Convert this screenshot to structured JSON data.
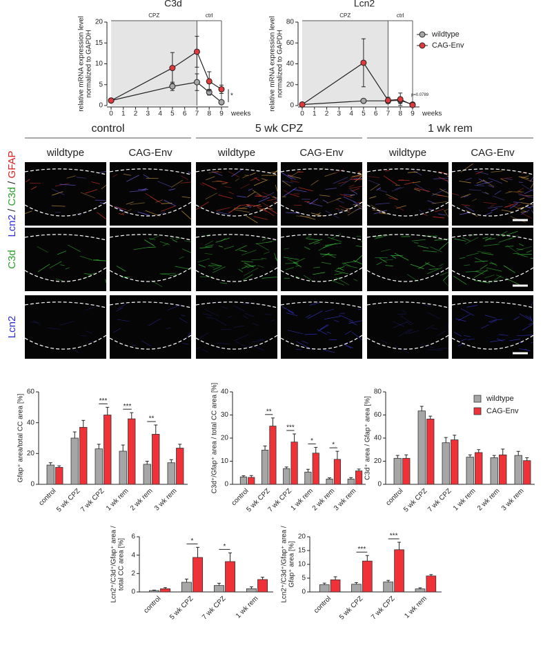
{
  "chart_data": [
    {
      "type": "line",
      "title": "C3d",
      "ylabel": [
        "relative mRNA expression level",
        "normalized to GAPDH"
      ],
      "xlabel": "weeks",
      "x": [
        0,
        5,
        7,
        8,
        9
      ],
      "xlim": [
        0,
        9
      ],
      "xticks": [
        0,
        1,
        2,
        3,
        4,
        5,
        6,
        7,
        8,
        9
      ],
      "ylim": [
        0,
        20
      ],
      "yticks": [
        0,
        5,
        10,
        15,
        20
      ],
      "regions": [
        {
          "label": "CPZ",
          "from": 0,
          "to": 7
        },
        {
          "label": "ctrl",
          "from": 7,
          "to": 9
        }
      ],
      "series": [
        {
          "name": "wildtype",
          "color": "#a6a6a6",
          "values": [
            1.2,
            4.6,
            5.6,
            3.2,
            0.8
          ],
          "errors": [
            0.2,
            1.0,
            2.0,
            0.7,
            0.3
          ]
        },
        {
          "name": "CAG-Env",
          "color": "#e0393b",
          "values": [
            1.2,
            9.0,
            12.9,
            5.8,
            3.9
          ],
          "errors": [
            0.2,
            3.7,
            3.7,
            2.3,
            1.0
          ]
        }
      ],
      "annotation": "*",
      "legend": false
    },
    {
      "type": "line",
      "title": "Lcn2",
      "ylabel": [
        "relative mRNA expression level",
        "normalized to GAPDH"
      ],
      "xlabel": "weeks",
      "x": [
        0,
        5,
        7,
        8,
        9
      ],
      "xlim": [
        0,
        9
      ],
      "xticks": [
        0,
        1,
        2,
        3,
        4,
        5,
        6,
        7,
        8,
        9
      ],
      "ylim": [
        0,
        80
      ],
      "yticks": [
        0,
        20,
        40,
        60,
        80
      ],
      "regions": [
        {
          "label": "CPZ",
          "from": 0,
          "to": 7
        },
        {
          "label": "ctrl",
          "from": 7,
          "to": 9
        }
      ],
      "series": [
        {
          "name": "wildtype",
          "color": "#a6a6a6",
          "values": [
            1,
            4.5,
            4.5,
            5,
            1
          ],
          "errors": [
            0.5,
            1,
            2,
            3,
            0.5
          ]
        },
        {
          "name": "CAG-Env",
          "color": "#e0393b",
          "values": [
            1,
            41,
            5,
            6,
            0.5
          ],
          "errors": [
            0.5,
            23,
            3,
            6,
            1
          ]
        }
      ],
      "annotation": "p=0.0789",
      "legend": true
    },
    {
      "type": "bar",
      "ylabel": [
        "Gfap⁺ area/total CC area [%]"
      ],
      "categories": [
        "control",
        "5 wk CPZ",
        "7 wk CPZ",
        "1 wk rem",
        "2 wk rem",
        "3 wk rem"
      ],
      "ylim": [
        0,
        60
      ],
      "yticks": [
        0,
        20,
        40,
        60
      ],
      "series": [
        {
          "name": "wildtype",
          "color": "#a6a6a6",
          "values": [
            12.5,
            30,
            23,
            21.5,
            13,
            14
          ],
          "errors": [
            1.5,
            4,
            3,
            4,
            2,
            2
          ]
        },
        {
          "name": "CAG-Env",
          "color": "#ee3238",
          "values": [
            11,
            37,
            45,
            42.5,
            32.5,
            23.5
          ],
          "errors": [
            1,
            4.5,
            5,
            4,
            6,
            2.5
          ]
        }
      ],
      "significance": [
        null,
        null,
        "***",
        "***",
        "**",
        null
      ],
      "legend": false
    },
    {
      "type": "bar",
      "ylabel": [
        "C3d⁺/Gfap⁺ area / total CC area [%]"
      ],
      "categories": [
        "control",
        "5 wk CPZ",
        "7 wk CPZ",
        "1 wk rem",
        "2 wk rem",
        "3 wk rem"
      ],
      "ylim": [
        0,
        40
      ],
      "yticks": [
        0,
        10,
        20,
        30,
        40
      ],
      "series": [
        {
          "name": "wildtype",
          "color": "#a6a6a6",
          "values": [
            3.2,
            14.8,
            6.8,
            5.3,
            2.3,
            2.3
          ],
          "errors": [
            0.5,
            1.8,
            0.7,
            1.2,
            0.5,
            0.6
          ]
        },
        {
          "name": "CAG-Env",
          "color": "#ee3238",
          "values": [
            3,
            25.2,
            18.3,
            13.5,
            10.8,
            5.8
          ],
          "errors": [
            0.8,
            3.5,
            3.5,
            2.5,
            3.5,
            0.8
          ]
        }
      ],
      "significance": [
        null,
        "**",
        "***",
        "*",
        "*",
        null
      ],
      "legend": false
    },
    {
      "type": "bar",
      "ylabel": [
        "C3d⁺ area / Gfap⁺ area [%]"
      ],
      "categories": [
        "control",
        "5 wk CPZ",
        "7 wk CPZ",
        "1 wk rem",
        "2 wk rem",
        "3 wk rem"
      ],
      "ylim": [
        0,
        80
      ],
      "yticks": [
        0,
        20,
        40,
        60,
        80
      ],
      "series": [
        {
          "name": "wildtype",
          "color": "#a6a6a6",
          "values": [
            22.5,
            63.5,
            36,
            23.5,
            23,
            25
          ],
          "errors": [
            2.5,
            4,
            4.5,
            2,
            2,
            3.5
          ]
        },
        {
          "name": "CAG-Env",
          "color": "#ee3238",
          "values": [
            22.5,
            56.5,
            38.5,
            27.5,
            25.5,
            20.5
          ],
          "errors": [
            3,
            2.5,
            4,
            2.5,
            5,
            2.5
          ]
        }
      ],
      "significance": [
        null,
        null,
        null,
        null,
        null,
        null
      ],
      "legend": true
    },
    {
      "type": "bar",
      "ylabel": [
        "Lcn2⁺/C3d⁺/Gfap⁺ area /",
        "total CC area [%]"
      ],
      "categories": [
        "control",
        "5 wk CPZ",
        "7 wk CPZ",
        "1 wk rem"
      ],
      "ylim": [
        0,
        6
      ],
      "yticks": [
        0,
        2,
        4,
        6
      ],
      "series": [
        {
          "name": "wildtype",
          "color": "#a6a6a6",
          "values": [
            0.15,
            1.05,
            0.7,
            0.35
          ],
          "errors": [
            0.05,
            0.35,
            0.25,
            0.2
          ]
        },
        {
          "name": "CAG-Env",
          "color": "#ee3238",
          "values": [
            0.35,
            3.75,
            3.3,
            1.35
          ],
          "errors": [
            0.12,
            1.1,
            0.95,
            0.25
          ]
        }
      ],
      "significance": [
        null,
        "*",
        "*",
        null
      ],
      "legend": false
    },
    {
      "type": "bar",
      "ylabel": [
        "Lcn2⁺/C3d⁺/Gfap⁺ area /",
        "Gfap⁺ area [%]"
      ],
      "categories": [
        "control",
        "5 wk CPZ",
        "7 wk CPZ",
        "1 wk rem"
      ],
      "ylim": [
        0,
        20
      ],
      "yticks": [
        0,
        5,
        10,
        15,
        20
      ],
      "series": [
        {
          "name": "wildtype",
          "color": "#a6a6a6",
          "values": [
            2.6,
            2.8,
            3.6,
            1.1
          ],
          "errors": [
            0.6,
            0.6,
            0.6,
            0.4
          ]
        },
        {
          "name": "CAG-Env",
          "color": "#ee3238",
          "values": [
            4.4,
            11.2,
            15.3,
            5.8
          ],
          "errors": [
            1.1,
            2,
            2.7,
            0.5
          ]
        }
      ],
      "significance": [
        null,
        "***",
        "***",
        null
      ],
      "legend": false
    }
  ],
  "image_panel": {
    "groups": [
      "control",
      "5 wk CPZ",
      "1 wk rem"
    ],
    "columns": [
      "wildtype",
      "CAG-Env",
      "wildtype",
      "CAG-Env",
      "wildtype",
      "CAG-Env"
    ],
    "rows": [
      [
        {
          "text": "Lcn2",
          "color": "#2b2bd6"
        },
        {
          "text": " / ",
          "color": "#222222"
        },
        {
          "text": "C3d",
          "color": "#2ca02c"
        },
        {
          "text": " / ",
          "color": "#222222"
        },
        {
          "text": "GFAP",
          "color": "#e02020"
        }
      ],
      [
        {
          "text": "C3d",
          "color": "#2ca02c"
        }
      ],
      [
        {
          "text": "Lcn2",
          "color": "#2b2bd6"
        }
      ]
    ]
  }
}
